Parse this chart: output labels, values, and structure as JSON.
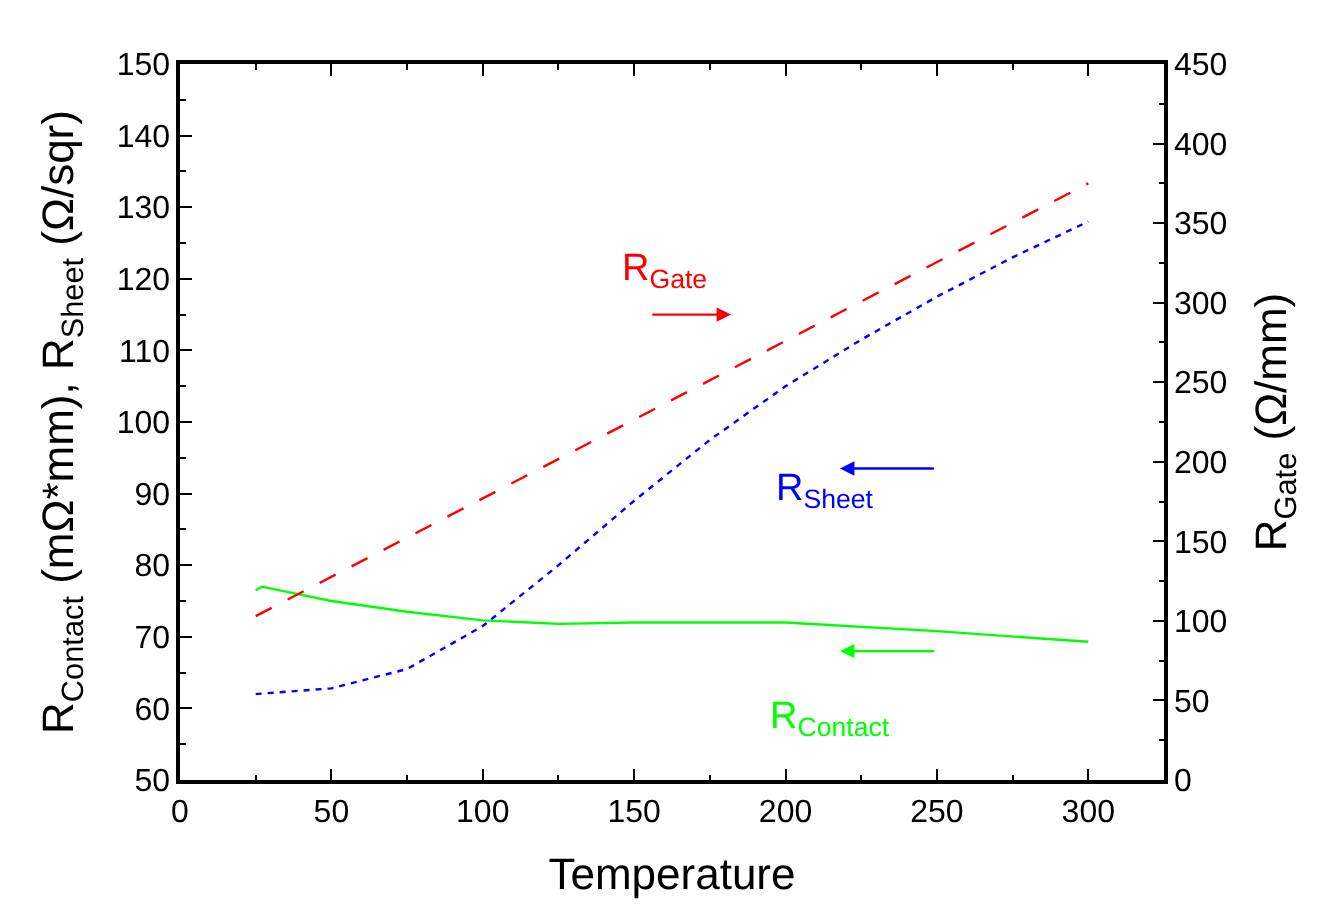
{
  "chart_data": {
    "type": "line",
    "xlabel": "Temperature",
    "ylabel": "R$_{Contact}$ (mΩ*mm), R$_{Sheet}$ (Ω/sqr)",
    "y2label": "R$_{Gate}$ (Ω/mm)",
    "xlim": [
      0,
      325
    ],
    "xticks": [
      0,
      50,
      100,
      150,
      200,
      250,
      300
    ],
    "ylim": [
      50,
      150
    ],
    "yticks": [
      50,
      60,
      70,
      80,
      90,
      100,
      110,
      120,
      130,
      140,
      150
    ],
    "y2lim": [
      0,
      450
    ],
    "y2ticks": [
      0,
      50,
      100,
      150,
      200,
      250,
      300,
      350,
      400,
      450
    ],
    "legend": "right",
    "marker": "none",
    "series": [
      {
        "name": "R$_{Gate}$",
        "color": "#ff0000",
        "axis": "y2",
        "line_style": "dashed",
        "x": [
          25,
          100,
          200,
          300
        ],
        "values": [
          103,
          177,
          276,
          375
        ]
      },
      {
        "name": "R$_{Sheet}$",
        "color": "#0000ff",
        "line_style": "dotted",
        "x": [
          25,
          50,
          75,
          100,
          125,
          150,
          175,
          200,
          225,
          250,
          275,
          300
        ],
        "values": [
          62,
          62.8,
          65.5,
          71.5,
          80,
          89,
          97.5,
          105,
          111.5,
          117.5,
          123,
          128
        ]
      },
      {
        "name": "R$_{Contact}$",
        "color": "#00ff00",
        "line_style": "solid",
        "x": [
          25,
          27,
          50,
          75,
          100,
          125,
          150,
          200,
          250,
          300
        ],
        "values": [
          76.5,
          77,
          75,
          73.5,
          72.3,
          71.8,
          72,
          72,
          70.8,
          69.3
        ]
      }
    ]
  }
}
